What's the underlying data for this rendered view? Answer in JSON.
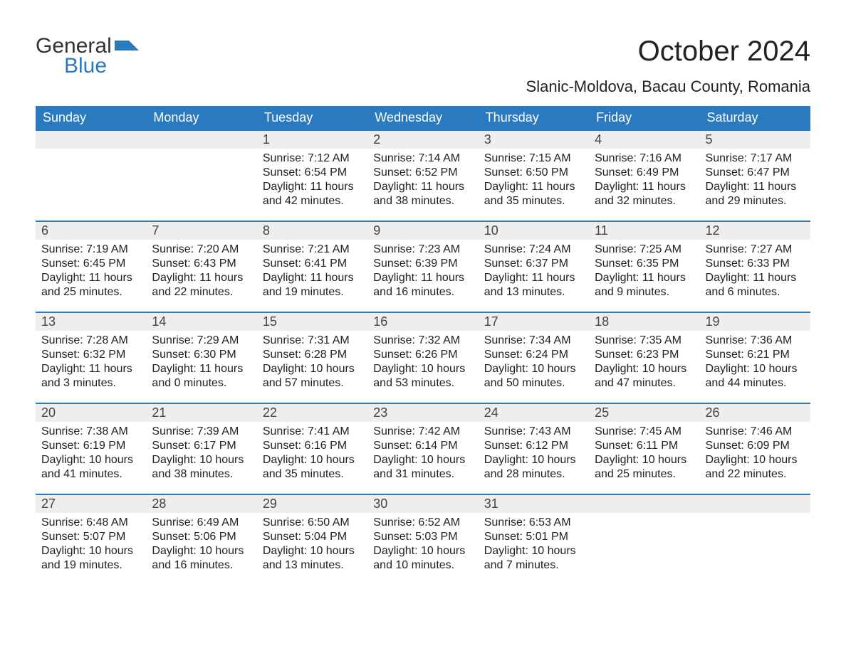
{
  "colors": {
    "brand_blue": "#2a7ac0",
    "header_bg": "#2a7ac0",
    "header_text": "#ffffff",
    "daynum_bg": "#eeeeee",
    "daynum_border_top": "#2a7ac0",
    "body_text": "#222222",
    "page_bg": "#ffffff"
  },
  "logo": {
    "line1": "General",
    "line2": "Blue"
  },
  "title": "October 2024",
  "location": "Slanic-Moldova, Bacau County, Romania",
  "weekday_headers": [
    "Sunday",
    "Monday",
    "Tuesday",
    "Wednesday",
    "Thursday",
    "Friday",
    "Saturday"
  ],
  "weeks": [
    [
      {
        "blank": true
      },
      {
        "blank": true
      },
      {
        "day": "1",
        "sunrise": "Sunrise: 7:12 AM",
        "sunset": "Sunset: 6:54 PM",
        "daylight": "Daylight: 11 hours and 42 minutes."
      },
      {
        "day": "2",
        "sunrise": "Sunrise: 7:14 AM",
        "sunset": "Sunset: 6:52 PM",
        "daylight": "Daylight: 11 hours and 38 minutes."
      },
      {
        "day": "3",
        "sunrise": "Sunrise: 7:15 AM",
        "sunset": "Sunset: 6:50 PM",
        "daylight": "Daylight: 11 hours and 35 minutes."
      },
      {
        "day": "4",
        "sunrise": "Sunrise: 7:16 AM",
        "sunset": "Sunset: 6:49 PM",
        "daylight": "Daylight: 11 hours and 32 minutes."
      },
      {
        "day": "5",
        "sunrise": "Sunrise: 7:17 AM",
        "sunset": "Sunset: 6:47 PM",
        "daylight": "Daylight: 11 hours and 29 minutes."
      }
    ],
    [
      {
        "day": "6",
        "sunrise": "Sunrise: 7:19 AM",
        "sunset": "Sunset: 6:45 PM",
        "daylight": "Daylight: 11 hours and 25 minutes."
      },
      {
        "day": "7",
        "sunrise": "Sunrise: 7:20 AM",
        "sunset": "Sunset: 6:43 PM",
        "daylight": "Daylight: 11 hours and 22 minutes."
      },
      {
        "day": "8",
        "sunrise": "Sunrise: 7:21 AM",
        "sunset": "Sunset: 6:41 PM",
        "daylight": "Daylight: 11 hours and 19 minutes."
      },
      {
        "day": "9",
        "sunrise": "Sunrise: 7:23 AM",
        "sunset": "Sunset: 6:39 PM",
        "daylight": "Daylight: 11 hours and 16 minutes."
      },
      {
        "day": "10",
        "sunrise": "Sunrise: 7:24 AM",
        "sunset": "Sunset: 6:37 PM",
        "daylight": "Daylight: 11 hours and 13 minutes."
      },
      {
        "day": "11",
        "sunrise": "Sunrise: 7:25 AM",
        "sunset": "Sunset: 6:35 PM",
        "daylight": "Daylight: 11 hours and 9 minutes."
      },
      {
        "day": "12",
        "sunrise": "Sunrise: 7:27 AM",
        "sunset": "Sunset: 6:33 PM",
        "daylight": "Daylight: 11 hours and 6 minutes."
      }
    ],
    [
      {
        "day": "13",
        "sunrise": "Sunrise: 7:28 AM",
        "sunset": "Sunset: 6:32 PM",
        "daylight": "Daylight: 11 hours and 3 minutes."
      },
      {
        "day": "14",
        "sunrise": "Sunrise: 7:29 AM",
        "sunset": "Sunset: 6:30 PM",
        "daylight": "Daylight: 11 hours and 0 minutes."
      },
      {
        "day": "15",
        "sunrise": "Sunrise: 7:31 AM",
        "sunset": "Sunset: 6:28 PM",
        "daylight": "Daylight: 10 hours and 57 minutes."
      },
      {
        "day": "16",
        "sunrise": "Sunrise: 7:32 AM",
        "sunset": "Sunset: 6:26 PM",
        "daylight": "Daylight: 10 hours and 53 minutes."
      },
      {
        "day": "17",
        "sunrise": "Sunrise: 7:34 AM",
        "sunset": "Sunset: 6:24 PM",
        "daylight": "Daylight: 10 hours and 50 minutes."
      },
      {
        "day": "18",
        "sunrise": "Sunrise: 7:35 AM",
        "sunset": "Sunset: 6:23 PM",
        "daylight": "Daylight: 10 hours and 47 minutes."
      },
      {
        "day": "19",
        "sunrise": "Sunrise: 7:36 AM",
        "sunset": "Sunset: 6:21 PM",
        "daylight": "Daylight: 10 hours and 44 minutes."
      }
    ],
    [
      {
        "day": "20",
        "sunrise": "Sunrise: 7:38 AM",
        "sunset": "Sunset: 6:19 PM",
        "daylight": "Daylight: 10 hours and 41 minutes."
      },
      {
        "day": "21",
        "sunrise": "Sunrise: 7:39 AM",
        "sunset": "Sunset: 6:17 PM",
        "daylight": "Daylight: 10 hours and 38 minutes."
      },
      {
        "day": "22",
        "sunrise": "Sunrise: 7:41 AM",
        "sunset": "Sunset: 6:16 PM",
        "daylight": "Daylight: 10 hours and 35 minutes."
      },
      {
        "day": "23",
        "sunrise": "Sunrise: 7:42 AM",
        "sunset": "Sunset: 6:14 PM",
        "daylight": "Daylight: 10 hours and 31 minutes."
      },
      {
        "day": "24",
        "sunrise": "Sunrise: 7:43 AM",
        "sunset": "Sunset: 6:12 PM",
        "daylight": "Daylight: 10 hours and 28 minutes."
      },
      {
        "day": "25",
        "sunrise": "Sunrise: 7:45 AM",
        "sunset": "Sunset: 6:11 PM",
        "daylight": "Daylight: 10 hours and 25 minutes."
      },
      {
        "day": "26",
        "sunrise": "Sunrise: 7:46 AM",
        "sunset": "Sunset: 6:09 PM",
        "daylight": "Daylight: 10 hours and 22 minutes."
      }
    ],
    [
      {
        "day": "27",
        "sunrise": "Sunrise: 6:48 AM",
        "sunset": "Sunset: 5:07 PM",
        "daylight": "Daylight: 10 hours and 19 minutes."
      },
      {
        "day": "28",
        "sunrise": "Sunrise: 6:49 AM",
        "sunset": "Sunset: 5:06 PM",
        "daylight": "Daylight: 10 hours and 16 minutes."
      },
      {
        "day": "29",
        "sunrise": "Sunrise: 6:50 AM",
        "sunset": "Sunset: 5:04 PM",
        "daylight": "Daylight: 10 hours and 13 minutes."
      },
      {
        "day": "30",
        "sunrise": "Sunrise: 6:52 AM",
        "sunset": "Sunset: 5:03 PM",
        "daylight": "Daylight: 10 hours and 10 minutes."
      },
      {
        "day": "31",
        "sunrise": "Sunrise: 6:53 AM",
        "sunset": "Sunset: 5:01 PM",
        "daylight": "Daylight: 10 hours and 7 minutes."
      },
      {
        "blank": true
      },
      {
        "blank": true
      }
    ]
  ]
}
